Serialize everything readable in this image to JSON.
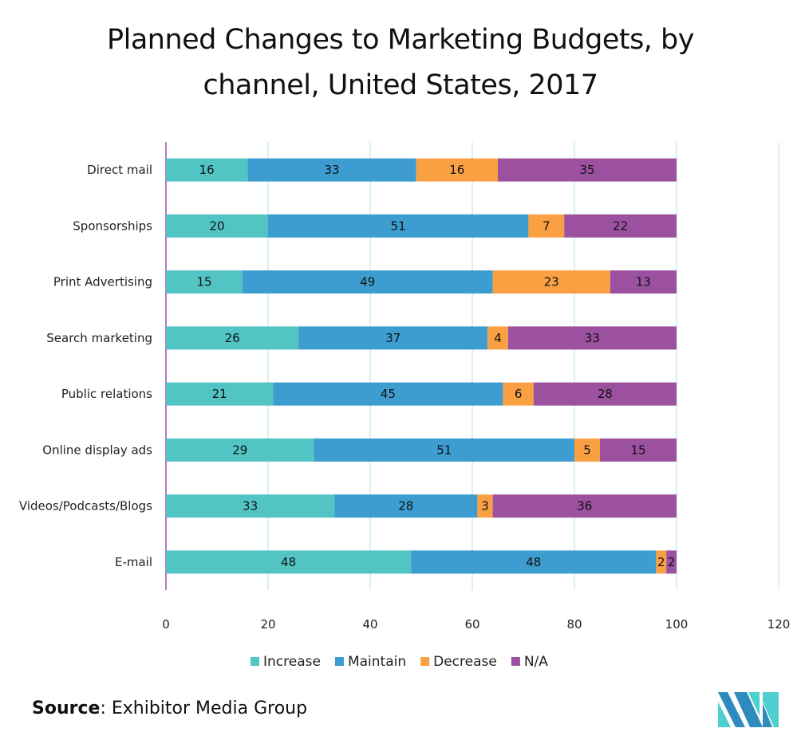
{
  "chart_data": {
    "type": "bar",
    "orientation": "horizontal",
    "stacked": true,
    "title": "Planned Changes to Marketing Budgets, by channel, United States, 2017",
    "title_lines": [
      "Planned Changes to Marketing Budgets, by",
      "channel, United States, 2017"
    ],
    "categories": [
      "Direct mail",
      "Sponsorships",
      "Print Advertising",
      "Search marketing",
      "Public relations",
      "Online display ads",
      "Videos/Podcasts/Blogs",
      "E-mail"
    ],
    "series": [
      {
        "name": "Increase",
        "color": "#52c4c4",
        "values": [
          16,
          20,
          15,
          26,
          21,
          29,
          33,
          48
        ]
      },
      {
        "name": "Maintain",
        "color": "#3d9dd0",
        "values": [
          33,
          51,
          49,
          37,
          45,
          51,
          28,
          48
        ]
      },
      {
        "name": "Decrease",
        "color": "#f9a043",
        "values": [
          16,
          7,
          23,
          4,
          6,
          5,
          3,
          2
        ]
      },
      {
        "name": "N/A",
        "color": "#9b51a0",
        "values": [
          35,
          22,
          13,
          33,
          28,
          15,
          36,
          2
        ]
      }
    ],
    "xlim": [
      0,
      120
    ],
    "xticks": [
      0,
      20,
      40,
      60,
      80,
      100,
      120
    ],
    "xlabel": "",
    "ylabel": "",
    "grid": true,
    "legend": "bottom"
  },
  "source": {
    "label": "Source",
    "text": ": Exhibitor Media Group"
  },
  "logo": {
    "name": "mordor-intelligence-logo"
  }
}
